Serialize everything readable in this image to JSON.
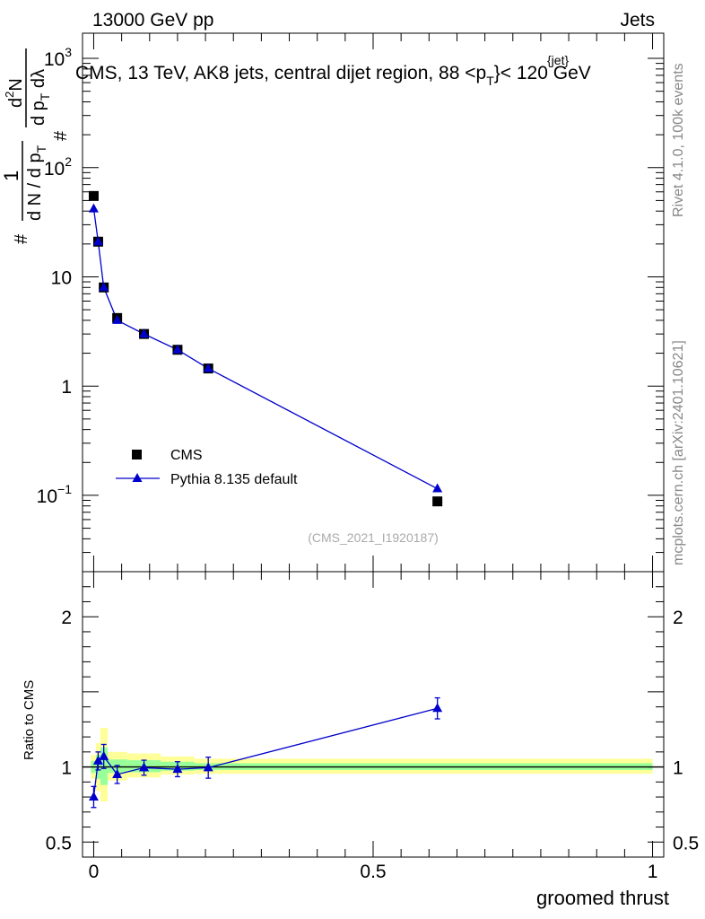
{
  "header": {
    "left": "13000 GeV pp",
    "right": "Jets"
  },
  "side_labels": {
    "rivet": "Rivet 4.1.0,  100k events",
    "mcplots": "mcplots.cern.ch [arXiv:2401.10621]"
  },
  "chart_data": [
    {
      "type": "scatter",
      "panel": "main",
      "title": "CMS, 13 TeV, AK8 jets, central dijet region, 88 <p_T^{jet}> < 120 GeV",
      "title_parts": {
        "prefix": "CMS, 13 TeV, AK8 jets, central dijet region, 88 <p",
        "sub": "T",
        "sup": "{jet}",
        "suffix": "}< 120 GeV"
      },
      "ylabel": "1/(dN/dp_T) d2N/(dp_T dlambda)",
      "ylabel_parts": {
        "hash": "#",
        "one": "1",
        "frac_den": "d N / d p",
        "num": "d",
        "sup": "2",
        "N": "N",
        "den": "d p",
        "sub": "T",
        "dl": " dλ"
      },
      "yscale": "log",
      "ylim": [
        0.02,
        1700
      ],
      "xlim": [
        -0.02,
        1.02
      ],
      "yticks": [
        {
          "value": 0.1,
          "label": "10",
          "sup": "−1"
        },
        {
          "value": 1,
          "label": "1",
          "sup": ""
        },
        {
          "value": 10,
          "label": "10",
          "sup": ""
        },
        {
          "value": 100,
          "label": "10",
          "sup": "2"
        },
        {
          "value": 1000,
          "label": "10",
          "sup": "3"
        }
      ],
      "watermark": "(CMS_2021_I1920187)",
      "legend": [
        {
          "name": "CMS",
          "marker": "square",
          "color": "#000000"
        },
        {
          "name": "Pythia 8.135 default",
          "marker": "triangle",
          "color": "#0000cc"
        }
      ],
      "legend_position": "lower-left",
      "series": [
        {
          "name": "CMS",
          "x": [
            0.0,
            0.008,
            0.018,
            0.042,
            0.09,
            0.15,
            0.205,
            0.615
          ],
          "y": [
            55,
            21,
            8.0,
            4.2,
            3.0,
            2.15,
            1.45,
            0.088
          ]
        },
        {
          "name": "Pythia 8.135 default",
          "x": [
            0.0,
            0.008,
            0.018,
            0.042,
            0.09,
            0.15,
            0.205,
            0.615
          ],
          "y": [
            42,
            21,
            8.0,
            4.0,
            3.0,
            2.15,
            1.45,
            0.115
          ]
        }
      ]
    },
    {
      "type": "scatter",
      "panel": "ratio",
      "ylabel": "Ratio to CMS",
      "xlabel": "groomed thrust",
      "ylim": [
        0.4,
        2.3
      ],
      "xlim": [
        -0.02,
        1.02
      ],
      "yticks": [
        0.5,
        1,
        2
      ],
      "ytick_labels": [
        "0.5",
        "1",
        "2"
      ],
      "xticks": [
        0,
        0.5,
        1
      ],
      "xtick_labels": [
        "0",
        "0.5",
        "1"
      ],
      "reference_line": 1,
      "uncertainty_bands": {
        "edges": [
          -0.005,
          0.004,
          0.012,
          0.025,
          0.06,
          0.12,
          0.18,
          1.0
        ],
        "outer_lo": [
          0.92,
          0.84,
          0.77,
          0.91,
          0.93,
          0.95,
          0.955,
          0.96
        ],
        "outer_hi": [
          1.08,
          1.16,
          1.26,
          1.1,
          1.09,
          1.07,
          1.055,
          1.05
        ],
        "inner_lo": [
          0.96,
          0.92,
          0.88,
          0.96,
          0.965,
          0.975,
          0.98,
          0.98
        ],
        "inner_hi": [
          1.04,
          1.08,
          1.13,
          1.05,
          1.045,
          1.035,
          1.025,
          1.02
        ],
        "outer_color": "#ffff99",
        "inner_color": "#99ff99"
      },
      "series": [
        {
          "name": "Pythia 8.135 default / CMS",
          "color": "#0000cc",
          "x": [
            0.0,
            0.008,
            0.018,
            0.042,
            0.09,
            0.15,
            0.205,
            0.615
          ],
          "y": [
            0.8,
            1.04,
            1.07,
            0.95,
            0.995,
            0.985,
            0.995,
            1.39
          ],
          "err": [
            0.07,
            0.06,
            0.08,
            0.06,
            0.05,
            0.05,
            0.07,
            0.07
          ]
        }
      ]
    }
  ]
}
